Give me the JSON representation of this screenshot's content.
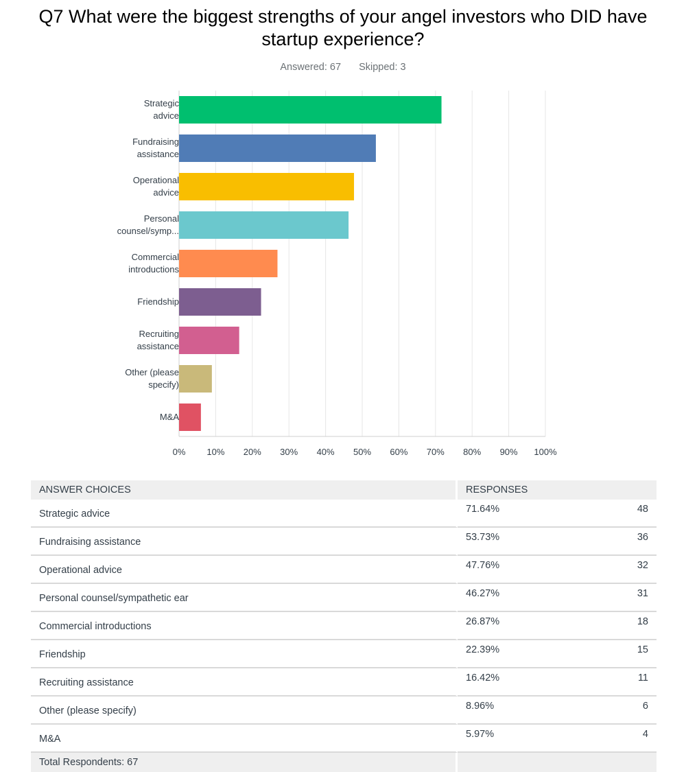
{
  "header": {
    "title": "Q7 What were the biggest strengths of your angel investors who DID have startup experience?",
    "answered": "Answered: 67",
    "skipped": "Skipped: 3"
  },
  "chart_data": {
    "type": "bar",
    "orientation": "horizontal",
    "categories": [
      [
        "Strategic",
        "advice"
      ],
      [
        "Fundraising",
        "assistance"
      ],
      [
        "Operational",
        "advice"
      ],
      [
        "Personal",
        "counsel/symp..."
      ],
      [
        "Commercial",
        "introductions"
      ],
      [
        "Friendship"
      ],
      [
        "Recruiting",
        "assistance"
      ],
      [
        "Other (please",
        "specify)"
      ],
      [
        "M&A"
      ]
    ],
    "values": [
      71.64,
      53.73,
      47.76,
      46.27,
      26.87,
      22.39,
      16.42,
      8.96,
      5.97
    ],
    "colors": [
      "#00bf6f",
      "#507cb6",
      "#f9be00",
      "#6bc8cd",
      "#ff8b4f",
      "#7d5e90",
      "#d25f90",
      "#c9b97a",
      "#e05263"
    ],
    "xlim": [
      0,
      100
    ],
    "xticks": [
      "0%",
      "10%",
      "20%",
      "30%",
      "40%",
      "50%",
      "60%",
      "70%",
      "80%",
      "90%",
      "100%"
    ],
    "grid": true
  },
  "table": {
    "headers": {
      "choice": "ANSWER CHOICES",
      "responses": "RESPONSES"
    },
    "rows": [
      {
        "choice": "Strategic advice",
        "percent": "71.64%",
        "count": "48"
      },
      {
        "choice": "Fundraising assistance",
        "percent": "53.73%",
        "count": "36"
      },
      {
        "choice": "Operational advice",
        "percent": "47.76%",
        "count": "32"
      },
      {
        "choice": "Personal counsel/sympathetic ear",
        "percent": "46.27%",
        "count": "31"
      },
      {
        "choice": "Commercial introductions",
        "percent": "26.87%",
        "count": "18"
      },
      {
        "choice": "Friendship",
        "percent": "22.39%",
        "count": "15"
      },
      {
        "choice": "Recruiting assistance",
        "percent": "16.42%",
        "count": "11"
      },
      {
        "choice": "Other (please specify)",
        "percent": "8.96%",
        "count": "6"
      },
      {
        "choice": "M&A",
        "percent": "5.97%",
        "count": "4"
      }
    ],
    "total": "Total Respondents: 67"
  }
}
